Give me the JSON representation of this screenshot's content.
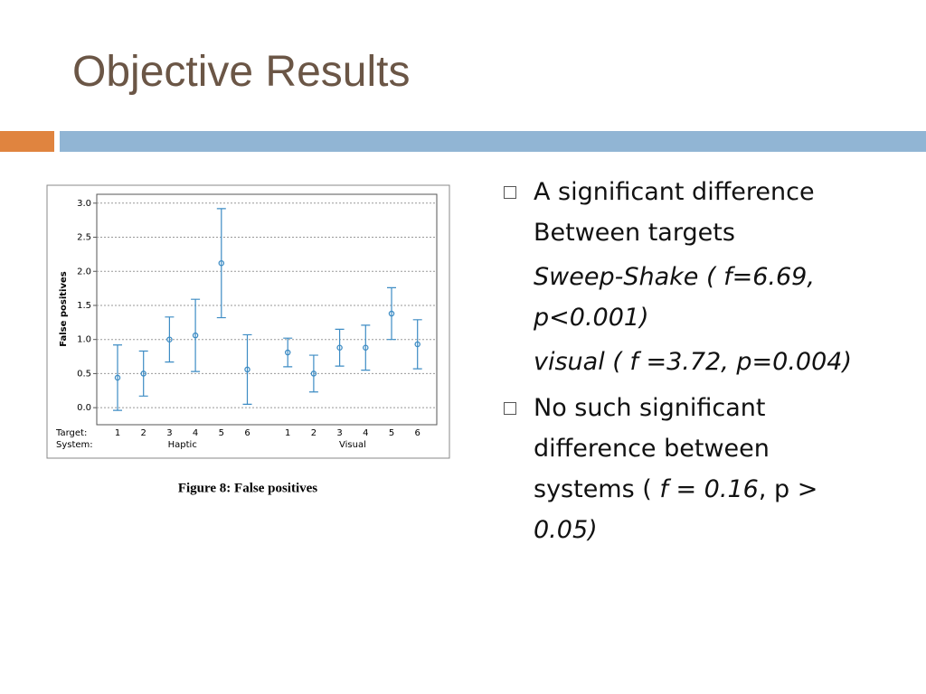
{
  "header": {
    "title": "Objective Results"
  },
  "chart_data": {
    "type": "errorbar",
    "y_label": "False positives",
    "row_labels": [
      "Target:",
      "System:"
    ],
    "groups": [
      {
        "name": "Haptic",
        "size": 6
      },
      {
        "name": "Visual",
        "size": 6
      }
    ],
    "categories": [
      "1",
      "2",
      "3",
      "4",
      "5",
      "6",
      "1",
      "2",
      "3",
      "4",
      "5",
      "6"
    ],
    "values": [
      0.44,
      0.5,
      1.0,
      1.06,
      2.12,
      0.56,
      0.81,
      0.5,
      0.88,
      0.88,
      1.38,
      0.93
    ],
    "errors": [
      0.48,
      0.33,
      0.33,
      0.53,
      0.8,
      0.51,
      0.21,
      0.27,
      0.27,
      0.33,
      0.38,
      0.36
    ],
    "color": "#3d8cc4",
    "ylim": [
      -0.25,
      3.13
    ],
    "yticks": [
      {
        "value": 0,
        "label": "0.0"
      },
      {
        "value": 0.5,
        "label": "0.5"
      },
      {
        "value": 1,
        "label": "1.0"
      },
      {
        "value": 1.5,
        "label": "1.5"
      },
      {
        "value": 2,
        "label": "2.0"
      },
      {
        "value": 2.5,
        "label": "2.5"
      },
      {
        "value": 3,
        "label": "3.0"
      }
    ],
    "grid": true,
    "caption": "Figure 8: False positives"
  },
  "bullets": [
    {
      "text": "A significant difference Between targets",
      "sub": [
        "Sweep-Shake ( f=6.69, p<0.001)",
        "visual ( f =3.72, p=0.004)"
      ]
    },
    {
      "parts": [
        {
          "text": "No such significant difference between systems ( ",
          "italic": false
        },
        {
          "text": "f = 0.16",
          "italic": true
        },
        {
          "text": ", p > ",
          "italic": false
        },
        {
          "text": "0.05)",
          "italic": true
        }
      ]
    }
  ]
}
